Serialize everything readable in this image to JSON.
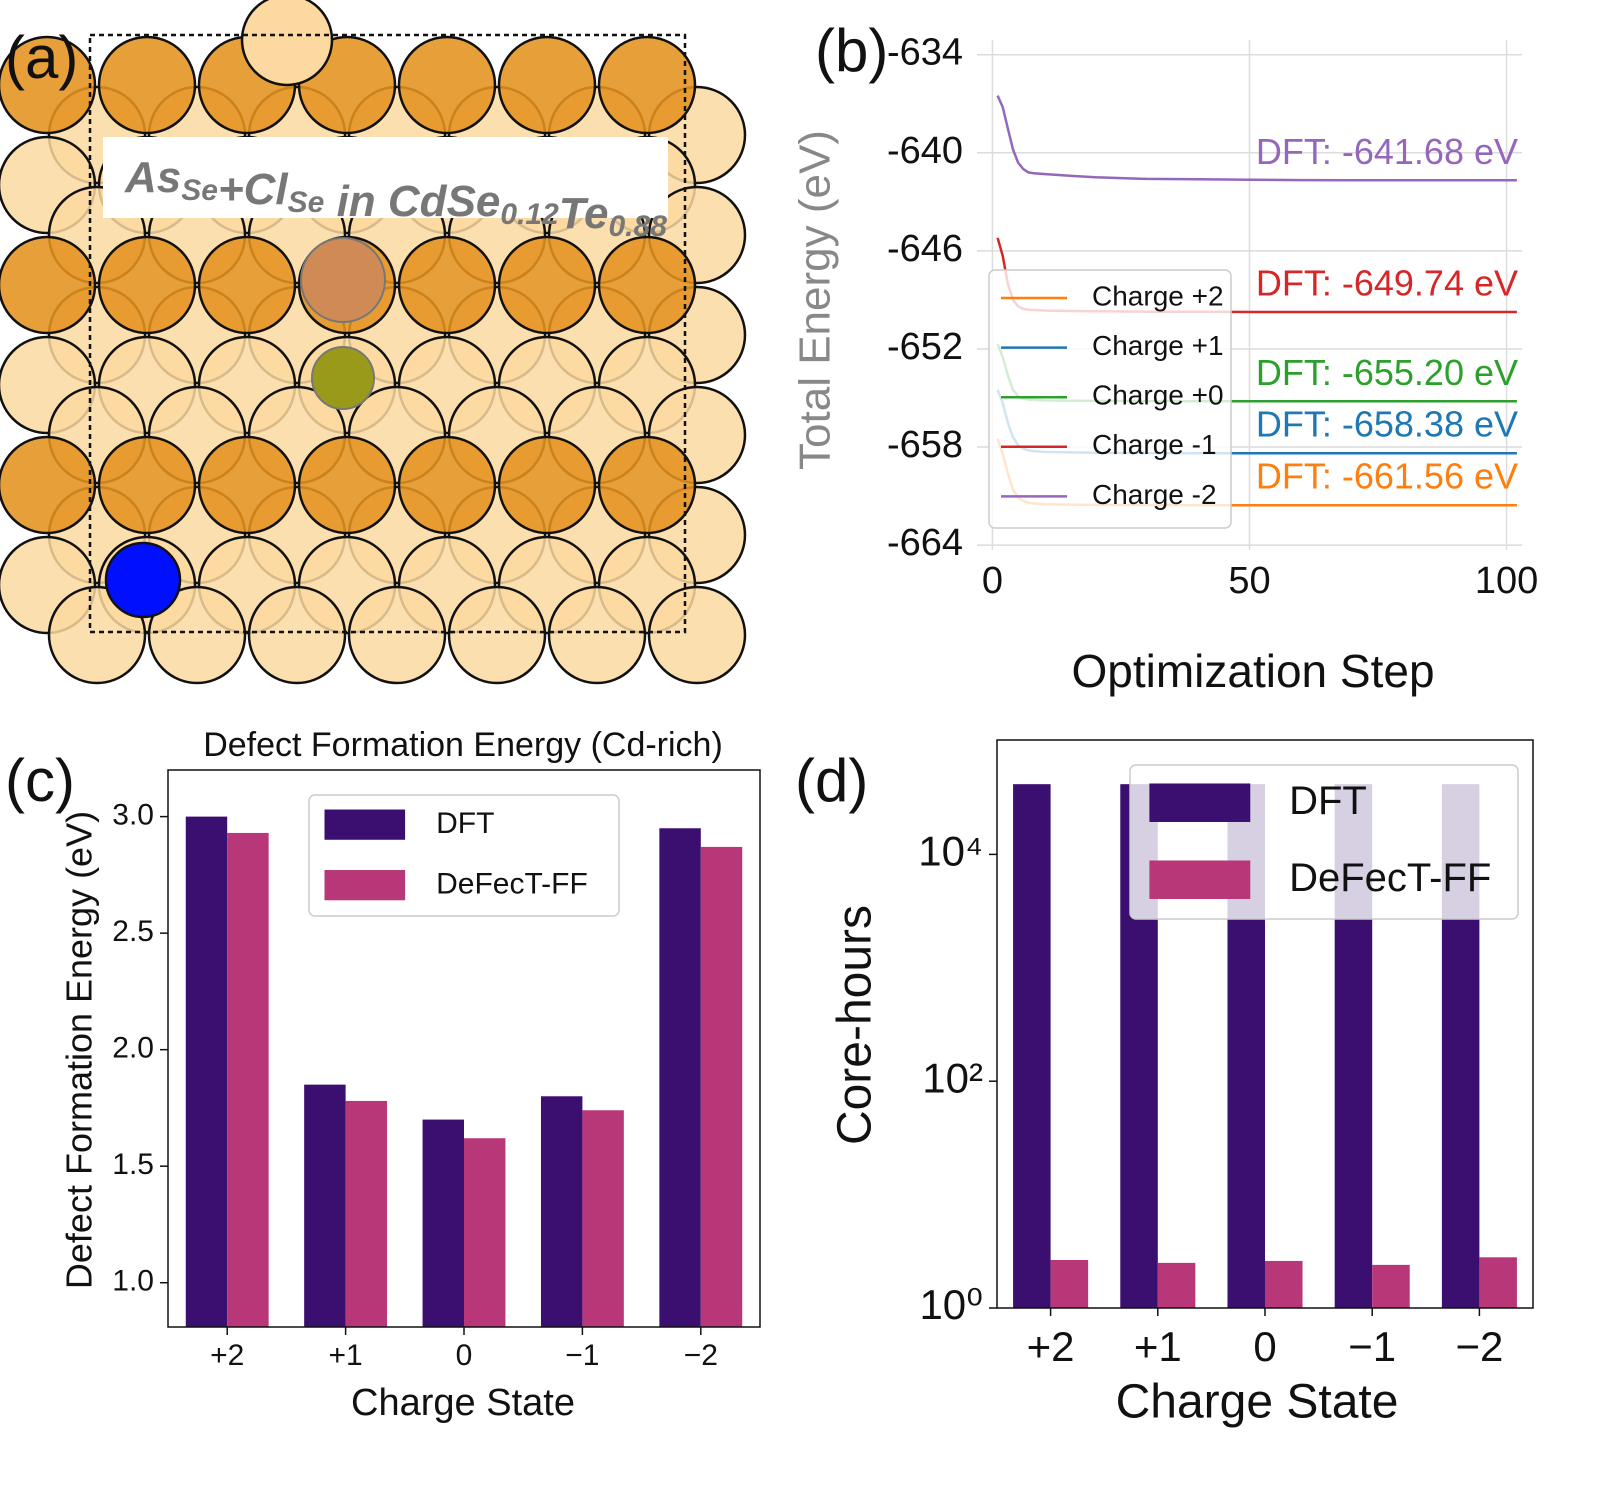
{
  "structure": {
    "panel_label": "(a)",
    "label": [
      [
        "As",
        "Se"
      ],
      [
        "+Cl",
        "Se"
      ],
      [
        " in CdSe",
        "0.12"
      ],
      [
        "Te",
        "0.88"
      ]
    ]
  },
  "chart_data": [
    {
      "type": "line",
      "panel_label": "(b)",
      "xlabel": "Optimization Step",
      "ylabel": "Total Energy (eV)",
      "x": [
        1,
        2,
        3,
        4,
        5,
        6,
        7,
        8,
        10,
        15,
        20,
        30,
        40,
        50,
        60,
        70,
        80,
        90,
        100,
        102
      ],
      "xlim": [
        -3,
        103
      ],
      "xticks": [
        0,
        50,
        100
      ],
      "ylim": [
        -664.3,
        -633.1
      ],
      "yticks": [
        -634,
        -640,
        -646,
        -652,
        -658,
        -664
      ],
      "grid": true,
      "legend": "lower left",
      "series": [
        {
          "name": "Charge +2",
          "color": "#ff7f0e",
          "label": "DFT: -661.56 eV",
          "values": [
            -657.5,
            -658.4,
            -659.6,
            -660.6,
            -661.1,
            -661.3,
            -661.4,
            -661.45,
            -661.5,
            -661.52,
            -661.54,
            -661.55,
            -661.56,
            -661.56,
            -661.56,
            -661.56,
            -661.56,
            -661.56,
            -661.56,
            -661.56
          ]
        },
        {
          "name": "Charge +1",
          "color": "#1f77b4",
          "label": "DFT: -658.38 eV",
          "values": [
            -654.5,
            -655.3,
            -656.5,
            -657.4,
            -657.9,
            -658.1,
            -658.2,
            -658.25,
            -658.3,
            -658.33,
            -658.35,
            -658.37,
            -658.38,
            -658.38,
            -658.38,
            -658.38,
            -658.38,
            -658.38,
            -658.38,
            -658.38
          ]
        },
        {
          "name": "Charge +0",
          "color": "#2ca02c",
          "label": "DFT: -655.20 eV",
          "values": [
            -651.7,
            -652.5,
            -653.6,
            -654.5,
            -654.9,
            -655.05,
            -655.1,
            -655.12,
            -655.15,
            -655.17,
            -655.18,
            -655.19,
            -655.2,
            -655.2,
            -655.2,
            -655.2,
            -655.2,
            -655.2,
            -655.2,
            -655.2
          ]
        },
        {
          "name": "Charge -1",
          "color": "#d62728",
          "label": "DFT: -649.74 eV",
          "values": [
            -645.2,
            -646.3,
            -648.0,
            -649.0,
            -649.4,
            -649.55,
            -649.6,
            -649.62,
            -649.65,
            -649.68,
            -649.7,
            -649.72,
            -649.73,
            -649.74,
            -649.74,
            -649.74,
            -649.74,
            -649.74,
            -649.74,
            -649.74
          ]
        },
        {
          "name": "Charge -2",
          "color": "#9467bd",
          "label": "DFT: -641.68 eV",
          "values": [
            -636.5,
            -637.2,
            -638.5,
            -639.8,
            -640.6,
            -641.0,
            -641.2,
            -641.25,
            -641.3,
            -641.4,
            -641.5,
            -641.6,
            -641.62,
            -641.65,
            -641.67,
            -641.68,
            -641.68,
            -641.68,
            -641.68,
            -641.68
          ]
        }
      ]
    },
    {
      "type": "bar",
      "panel_label": "(c)",
      "title": "Defect Formation Energy (Cd-rich)",
      "xlabel": "Charge State",
      "ylabel": "Defect Formation Energy (eV)",
      "categories": [
        "+2",
        "+1",
        "0",
        "−1",
        "−2"
      ],
      "ylim": [
        0.81,
        3.2
      ],
      "yticks": [
        {
          "value": 1,
          "label": "1.0"
        },
        1.5,
        {
          "value": 2,
          "label": "2.0"
        },
        2.5,
        {
          "value": 3,
          "label": "3.0"
        }
      ],
      "grid": false,
      "legend": "upper center",
      "series": [
        {
          "name": "DFT",
          "color": "#3b0f70",
          "values": [
            3.0,
            1.85,
            1.7,
            1.8,
            2.95
          ]
        },
        {
          "name": "DeFecT-FF",
          "color": "#b73779",
          "values": [
            2.93,
            1.78,
            1.62,
            1.74,
            2.87
          ]
        }
      ]
    },
    {
      "type": "bar",
      "panel_label": "(d)",
      "xlabel": "Charge State",
      "ylabel": "Core-hours",
      "categories": [
        "+2",
        "+1",
        "0",
        "−1",
        "−2"
      ],
      "log": true,
      "ylim": [
        1,
        102000
      ],
      "yticks": [
        {
          "value": 1,
          "label": "10⁰"
        },
        {
          "value": 100,
          "label": "10²"
        },
        {
          "value": 10000,
          "label": "10⁴"
        }
      ],
      "grid": false,
      "legend": "upper right",
      "series": [
        {
          "name": "DFT",
          "color": "#3b0f70",
          "values": [
            41600,
            41600,
            41600,
            41600,
            41600
          ]
        },
        {
          "name": "DeFecT-FF",
          "color": "#b73779",
          "values": [
            2.65,
            2.5,
            2.6,
            2.4,
            2.8
          ]
        }
      ]
    }
  ]
}
